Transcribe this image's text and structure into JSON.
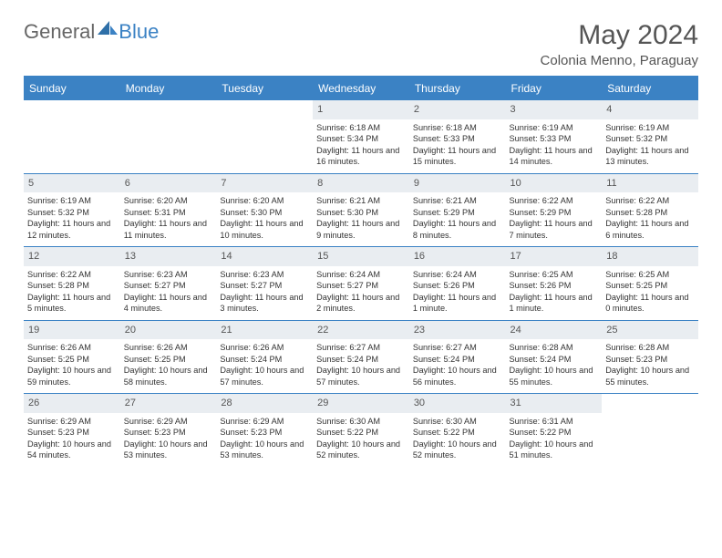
{
  "logo": {
    "part1": "General",
    "part2": "Blue"
  },
  "title": "May 2024",
  "location": "Colonia Menno, Paraguay",
  "colors": {
    "accent": "#3b82c4",
    "daynum_bg": "#e9edf1",
    "text": "#333333",
    "title_text": "#555555"
  },
  "weekdays": [
    "Sunday",
    "Monday",
    "Tuesday",
    "Wednesday",
    "Thursday",
    "Friday",
    "Saturday"
  ],
  "weeks": [
    [
      {
        "empty": true
      },
      {
        "empty": true
      },
      {
        "empty": true
      },
      {
        "day": "1",
        "sunrise": "6:18 AM",
        "sunset": "5:34 PM",
        "daylight": "11 hours and 16 minutes."
      },
      {
        "day": "2",
        "sunrise": "6:18 AM",
        "sunset": "5:33 PM",
        "daylight": "11 hours and 15 minutes."
      },
      {
        "day": "3",
        "sunrise": "6:19 AM",
        "sunset": "5:33 PM",
        "daylight": "11 hours and 14 minutes."
      },
      {
        "day": "4",
        "sunrise": "6:19 AM",
        "sunset": "5:32 PM",
        "daylight": "11 hours and 13 minutes."
      }
    ],
    [
      {
        "day": "5",
        "sunrise": "6:19 AM",
        "sunset": "5:32 PM",
        "daylight": "11 hours and 12 minutes."
      },
      {
        "day": "6",
        "sunrise": "6:20 AM",
        "sunset": "5:31 PM",
        "daylight": "11 hours and 11 minutes."
      },
      {
        "day": "7",
        "sunrise": "6:20 AM",
        "sunset": "5:30 PM",
        "daylight": "11 hours and 10 minutes."
      },
      {
        "day": "8",
        "sunrise": "6:21 AM",
        "sunset": "5:30 PM",
        "daylight": "11 hours and 9 minutes."
      },
      {
        "day": "9",
        "sunrise": "6:21 AM",
        "sunset": "5:29 PM",
        "daylight": "11 hours and 8 minutes."
      },
      {
        "day": "10",
        "sunrise": "6:22 AM",
        "sunset": "5:29 PM",
        "daylight": "11 hours and 7 minutes."
      },
      {
        "day": "11",
        "sunrise": "6:22 AM",
        "sunset": "5:28 PM",
        "daylight": "11 hours and 6 minutes."
      }
    ],
    [
      {
        "day": "12",
        "sunrise": "6:22 AM",
        "sunset": "5:28 PM",
        "daylight": "11 hours and 5 minutes."
      },
      {
        "day": "13",
        "sunrise": "6:23 AM",
        "sunset": "5:27 PM",
        "daylight": "11 hours and 4 minutes."
      },
      {
        "day": "14",
        "sunrise": "6:23 AM",
        "sunset": "5:27 PM",
        "daylight": "11 hours and 3 minutes."
      },
      {
        "day": "15",
        "sunrise": "6:24 AM",
        "sunset": "5:27 PM",
        "daylight": "11 hours and 2 minutes."
      },
      {
        "day": "16",
        "sunrise": "6:24 AM",
        "sunset": "5:26 PM",
        "daylight": "11 hours and 1 minute."
      },
      {
        "day": "17",
        "sunrise": "6:25 AM",
        "sunset": "5:26 PM",
        "daylight": "11 hours and 1 minute."
      },
      {
        "day": "18",
        "sunrise": "6:25 AM",
        "sunset": "5:25 PM",
        "daylight": "11 hours and 0 minutes."
      }
    ],
    [
      {
        "day": "19",
        "sunrise": "6:26 AM",
        "sunset": "5:25 PM",
        "daylight": "10 hours and 59 minutes."
      },
      {
        "day": "20",
        "sunrise": "6:26 AM",
        "sunset": "5:25 PM",
        "daylight": "10 hours and 58 minutes."
      },
      {
        "day": "21",
        "sunrise": "6:26 AM",
        "sunset": "5:24 PM",
        "daylight": "10 hours and 57 minutes."
      },
      {
        "day": "22",
        "sunrise": "6:27 AM",
        "sunset": "5:24 PM",
        "daylight": "10 hours and 57 minutes."
      },
      {
        "day": "23",
        "sunrise": "6:27 AM",
        "sunset": "5:24 PM",
        "daylight": "10 hours and 56 minutes."
      },
      {
        "day": "24",
        "sunrise": "6:28 AM",
        "sunset": "5:24 PM",
        "daylight": "10 hours and 55 minutes."
      },
      {
        "day": "25",
        "sunrise": "6:28 AM",
        "sunset": "5:23 PM",
        "daylight": "10 hours and 55 minutes."
      }
    ],
    [
      {
        "day": "26",
        "sunrise": "6:29 AM",
        "sunset": "5:23 PM",
        "daylight": "10 hours and 54 minutes."
      },
      {
        "day": "27",
        "sunrise": "6:29 AM",
        "sunset": "5:23 PM",
        "daylight": "10 hours and 53 minutes."
      },
      {
        "day": "28",
        "sunrise": "6:29 AM",
        "sunset": "5:23 PM",
        "daylight": "10 hours and 53 minutes."
      },
      {
        "day": "29",
        "sunrise": "6:30 AM",
        "sunset": "5:22 PM",
        "daylight": "10 hours and 52 minutes."
      },
      {
        "day": "30",
        "sunrise": "6:30 AM",
        "sunset": "5:22 PM",
        "daylight": "10 hours and 52 minutes."
      },
      {
        "day": "31",
        "sunrise": "6:31 AM",
        "sunset": "5:22 PM",
        "daylight": "10 hours and 51 minutes."
      },
      {
        "empty": true
      }
    ]
  ]
}
